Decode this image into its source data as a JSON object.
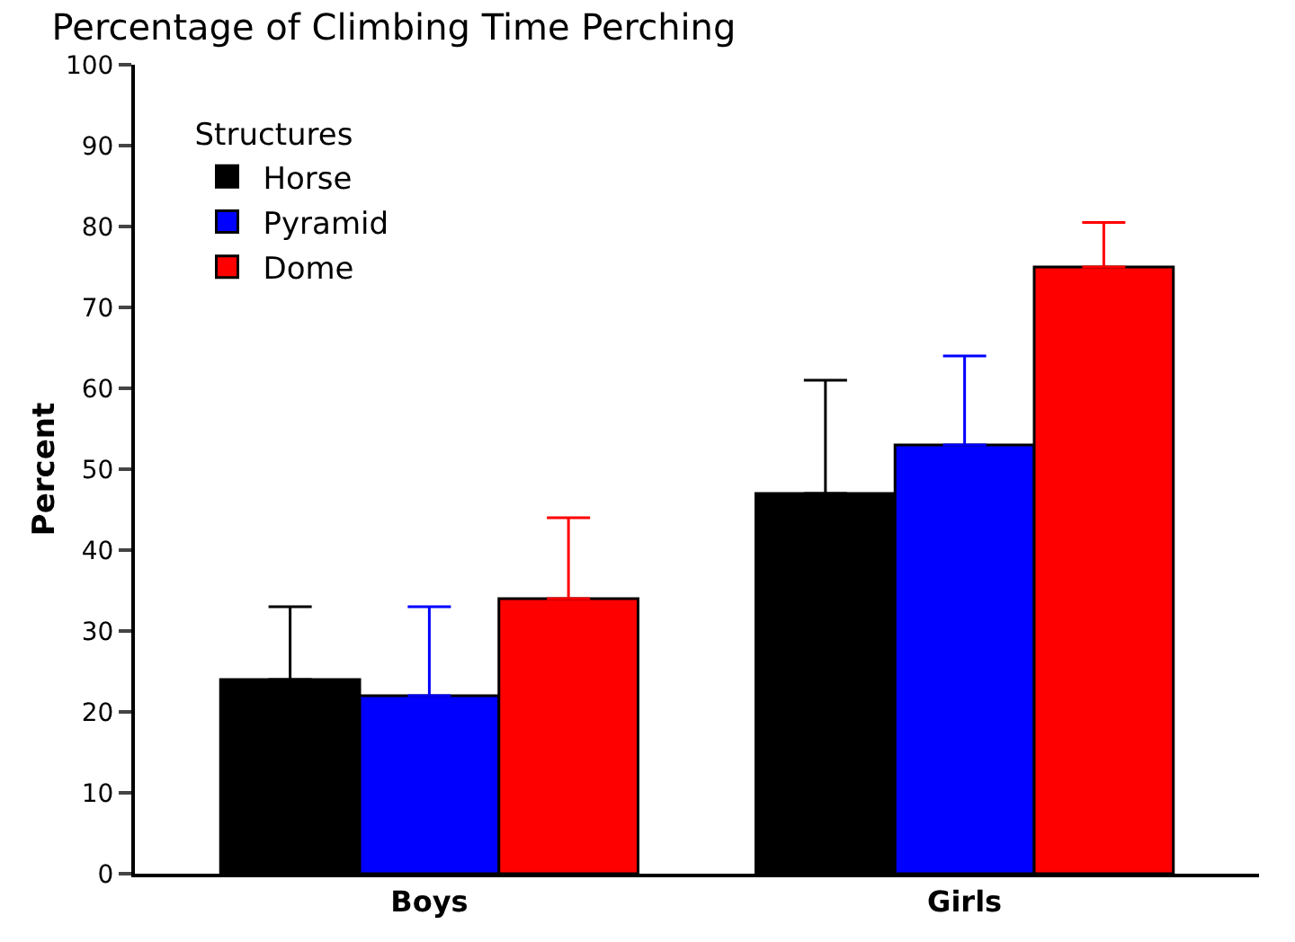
{
  "chart_data": {
    "type": "bar",
    "title": "Percentage of Climbing Time Perching",
    "ylabel": "Percent",
    "legend_title": "Structures",
    "categories": [
      "Boys",
      "Girls"
    ],
    "series": [
      {
        "name": "Horse",
        "color": "#000000",
        "values": [
          24,
          47
        ],
        "errors": [
          [
            24,
            33
          ],
          [
            47,
            61
          ]
        ]
      },
      {
        "name": "Pyramid",
        "color": "#0000ff",
        "values": [
          22,
          53
        ],
        "errors": [
          [
            22,
            33
          ],
          [
            53,
            64
          ]
        ]
      },
      {
        "name": "Dome",
        "color": "#ff0000",
        "values": [
          34,
          75
        ],
        "errors": [
          [
            34,
            44
          ],
          [
            75,
            80.5
          ]
        ]
      }
    ],
    "ylim": [
      0,
      100
    ],
    "yticks": [
      0,
      10,
      20,
      30,
      40,
      50,
      60,
      70,
      80,
      90,
      100
    ],
    "grid": false,
    "legend": "top left"
  }
}
